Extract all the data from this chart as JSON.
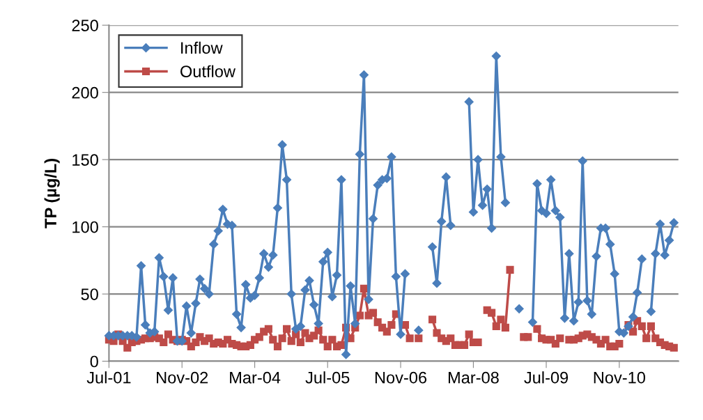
{
  "chart_data": {
    "type": "line",
    "ylabel": "TP (µg/L)",
    "x": [
      "2001-07",
      "2001-08",
      "2001-09",
      "2001-10",
      "2001-11",
      "2001-12",
      "2002-01",
      "2002-02",
      "2002-03",
      "2002-04",
      "2002-05",
      "2002-06",
      "2002-07",
      "2002-08",
      "2002-09",
      "2002-10",
      "2002-11",
      "2002-12",
      "2003-01",
      "2003-02",
      "2003-03",
      "2003-04",
      "2003-05",
      "2003-06",
      "2003-07",
      "2003-08",
      "2003-09",
      "2003-10",
      "2003-11",
      "2003-12",
      "2004-01",
      "2004-02",
      "2004-03",
      "2004-04",
      "2004-05",
      "2004-06",
      "2004-07",
      "2004-08",
      "2004-09",
      "2004-10",
      "2004-11",
      "2004-12",
      "2005-01",
      "2005-02",
      "2005-03",
      "2005-04",
      "2005-05",
      "2005-06",
      "2005-07",
      "2005-08",
      "2005-09",
      "2005-10",
      "2005-11",
      "2005-12",
      "2006-01",
      "2006-02",
      "2006-03",
      "2006-04",
      "2006-05",
      "2006-06",
      "2006-07",
      "2006-08",
      "2006-09",
      "2006-10",
      "2006-11",
      "2006-12",
      "2007-01",
      "2007-02",
      "2007-03",
      "2007-04",
      "2007-05",
      "2007-06",
      "2007-07",
      "2007-08",
      "2007-09",
      "2007-10",
      "2007-11",
      "2007-12",
      "2008-01",
      "2008-02",
      "2008-03",
      "2008-04",
      "2008-05",
      "2008-06",
      "2008-07",
      "2008-08",
      "2008-09",
      "2008-10",
      "2008-11",
      "2008-12",
      "2009-01",
      "2009-02",
      "2009-03",
      "2009-04",
      "2009-05",
      "2009-06",
      "2009-07",
      "2009-08",
      "2009-09",
      "2009-10",
      "2009-11",
      "2009-12",
      "2010-01",
      "2010-02",
      "2010-03",
      "2010-04",
      "2010-05",
      "2010-06",
      "2010-07",
      "2010-08",
      "2010-09",
      "2010-10",
      "2010-11",
      "2010-12",
      "2011-01",
      "2011-02",
      "2011-03",
      "2011-04",
      "2011-05",
      "2011-06",
      "2011-07",
      "2011-08",
      "2011-09",
      "2011-10",
      "2011-11"
    ],
    "series": [
      {
        "name": "Inflow",
        "color": "#4a7ebb",
        "marker": "diamond",
        "values": [
          19,
          19,
          19,
          19,
          19,
          19,
          18,
          71,
          27,
          21,
          22,
          77,
          63,
          38,
          62,
          15,
          15,
          41,
          21,
          43,
          61,
          54,
          50,
          87,
          97,
          113,
          102,
          101,
          35,
          25,
          57,
          47,
          49,
          62,
          80,
          70,
          79,
          114,
          161,
          135,
          50,
          24,
          26,
          53,
          60,
          42,
          28,
          74,
          81,
          48,
          64,
          135,
          5,
          56,
          28,
          154,
          213,
          46,
          106,
          131,
          135,
          136,
          152,
          63,
          20,
          65,
          null,
          null,
          23,
          null,
          null,
          85,
          58,
          104,
          137,
          101,
          null,
          null,
          null,
          193,
          111,
          150,
          116,
          128,
          99,
          227,
          152,
          118,
          null,
          null,
          39,
          null,
          null,
          29,
          132,
          112,
          110,
          135,
          112,
          107,
          32,
          80,
          30,
          44,
          149,
          45,
          35,
          78,
          99,
          99,
          87,
          65,
          22,
          21,
          26,
          33,
          51,
          76,
          null,
          37,
          80,
          102,
          79,
          90,
          103
        ]
      },
      {
        "name": "Outflow",
        "color": "#be4b48",
        "marker": "square",
        "values": [
          16,
          15,
          20,
          15,
          10,
          14,
          15,
          16,
          17,
          17,
          18,
          17,
          14,
          20,
          16,
          15,
          16,
          15,
          11,
          14,
          18,
          15,
          17,
          13,
          14,
          13,
          16,
          13,
          12,
          11,
          11,
          12,
          16,
          18,
          22,
          24,
          16,
          11,
          17,
          24,
          15,
          20,
          14,
          21,
          17,
          19,
          23,
          16,
          11,
          16,
          11,
          12,
          25,
          17,
          25,
          34,
          54,
          34,
          36,
          29,
          25,
          22,
          27,
          35,
          null,
          27,
          17,
          null,
          17,
          null,
          null,
          31,
          21,
          17,
          15,
          17,
          12,
          12,
          12,
          20,
          14,
          14,
          null,
          38,
          36,
          26,
          31,
          25,
          68,
          null,
          null,
          18,
          18,
          null,
          24,
          17,
          16,
          16,
          13,
          17,
          null,
          16,
          16,
          17,
          19,
          20,
          18,
          16,
          13,
          16,
          11,
          11,
          13,
          null,
          27,
          22,
          30,
          26,
          17,
          26,
          17,
          14,
          12,
          11,
          10
        ]
      }
    ],
    "xlim": [
      "2001-07",
      "2011-12"
    ],
    "xticks": [
      {
        "value": "2001-07",
        "label": "Jul-01"
      },
      {
        "value": "2002-11",
        "label": "Nov-02"
      },
      {
        "value": "2004-03",
        "label": "Mar-04"
      },
      {
        "value": "2005-07",
        "label": "Jul-05"
      },
      {
        "value": "2006-11",
        "label": "Nov-06"
      },
      {
        "value": "2008-03",
        "label": "Mar-08"
      },
      {
        "value": "2009-07",
        "label": "Jul-09"
      },
      {
        "value": "2010-11",
        "label": "Nov-10"
      }
    ],
    "ylim": [
      0,
      250
    ],
    "yticks": [
      0,
      50,
      100,
      150,
      200,
      250
    ],
    "grid": "y",
    "legend": "top left",
    "line_style": "solid"
  }
}
